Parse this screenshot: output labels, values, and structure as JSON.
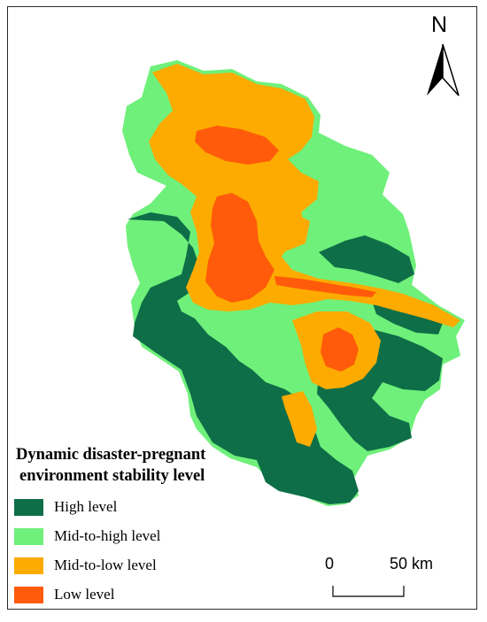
{
  "map": {
    "colors": {
      "high": "#0e6e47",
      "mid_high": "#6ff07a",
      "mid_low": "#fdab00",
      "low": "#ff5b0a"
    }
  },
  "north_arrow": {
    "label": "N",
    "icon": "north-arrow-icon"
  },
  "legend": {
    "title_line1": "Dynamic disaster-pregnant",
    "title_line2": "environment  stability level",
    "items": [
      {
        "label": "High level",
        "color": "#0e6e47"
      },
      {
        "label": "Mid-to-high level",
        "color": "#6ff07a"
      },
      {
        "label": "Mid-to-low level",
        "color": "#fdab00"
      },
      {
        "label": "Low level",
        "color": "#ff5b0a"
      }
    ]
  },
  "scale_bar": {
    "start_label": "0",
    "end_label": "50 km"
  }
}
